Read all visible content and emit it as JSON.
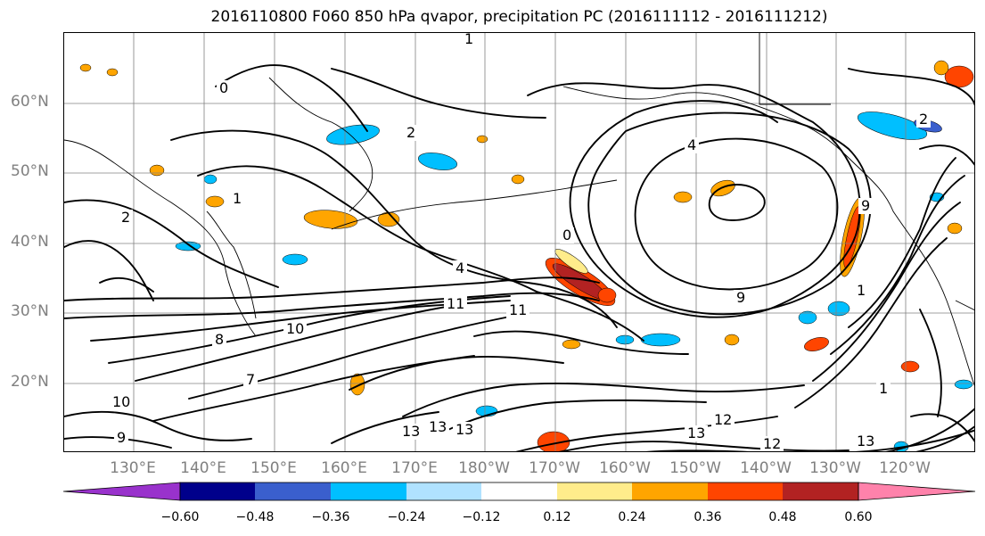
{
  "title": "2016110800 F060 850 hPa qvapor, precipitation PC (2016111112 - 2016111212)",
  "map": {
    "lat_labels": [
      "60°N",
      "50°N",
      "40°N",
      "30°N",
      "20°N"
    ],
    "lon_labels": [
      "130°E",
      "140°E",
      "150°E",
      "160°E",
      "170°E",
      "180°W",
      "170°W",
      "160°W",
      "150°W",
      "140°W",
      "130°W",
      "120°W"
    ],
    "contour_labels": [
      "1",
      "0",
      "2",
      "4",
      "1",
      "2",
      "0",
      "4",
      "9",
      "11",
      "11",
      "10",
      "8",
      "13",
      "10",
      "9",
      "13",
      "12",
      "13",
      "13",
      "12",
      "13",
      "1",
      "7",
      "9",
      "2",
      "1"
    ],
    "colors": {
      "coast": "#000000",
      "grid": "#808080",
      "contour": "#000000"
    }
  },
  "colorbar": {
    "colors": [
      "#9932cc",
      "#00008b",
      "#3a5fcd",
      "#00bfff",
      "#b0e2ff",
      "#ffffff",
      "#ffec8b",
      "#ffa500",
      "#ff4500",
      "#b22222",
      "#ff82ab"
    ],
    "tick_labels": [
      "−0.60",
      "−0.48",
      "−0.36",
      "−0.24",
      "−0.12",
      "0.12",
      "0.24",
      "0.36",
      "0.48",
      "0.60"
    ]
  }
}
